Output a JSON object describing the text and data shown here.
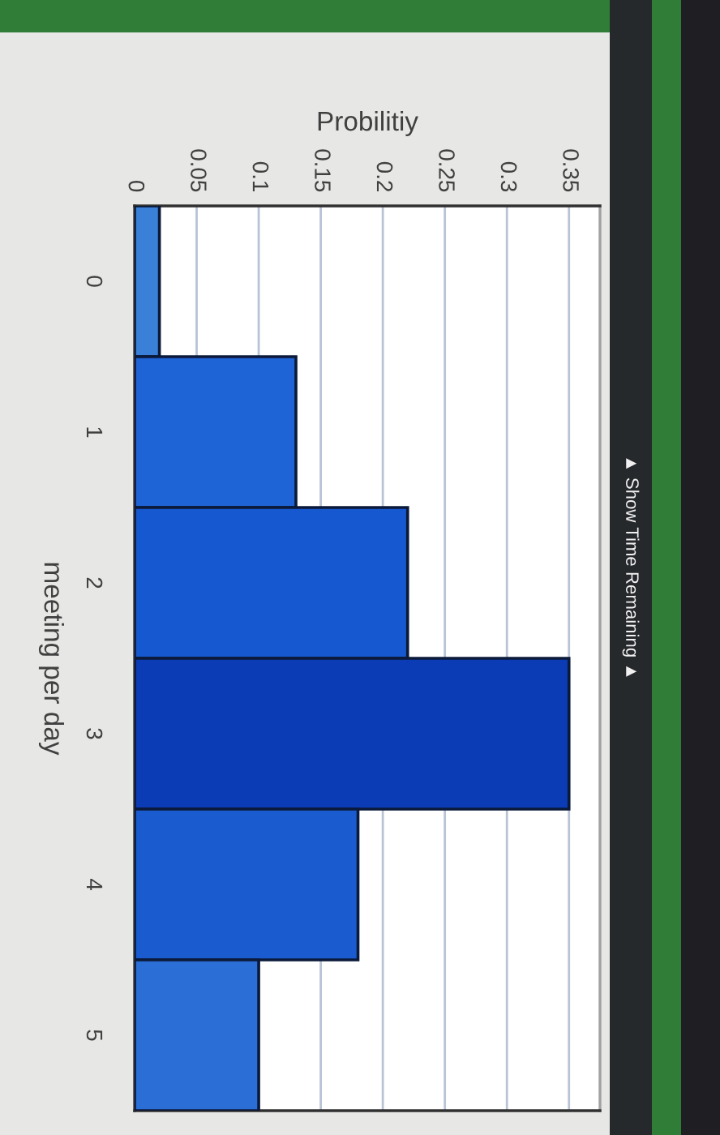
{
  "chart_data": {
    "type": "bar",
    "orientation": "horizontal",
    "xlabel": "Probilitiy",
    "ylabel": "meeting per day",
    "categories": [
      "0",
      "1",
      "2",
      "3",
      "4",
      "5"
    ],
    "values": [
      0.02,
      0.13,
      0.22,
      0.35,
      0.18,
      0.1
    ],
    "colors": [
      "#3a80d8",
      "#1e64d6",
      "#1658cf",
      "#0b3cb6",
      "#1a5ccf",
      "#2a6ed6"
    ],
    "xlim": [
      0,
      0.375
    ],
    "xticks": [
      0,
      0.05,
      0.1,
      0.15,
      0.2,
      0.25,
      0.3,
      0.35
    ],
    "grid": "x",
    "annotations": [
      "▲ Show Time Remaining ▲"
    ]
  }
}
